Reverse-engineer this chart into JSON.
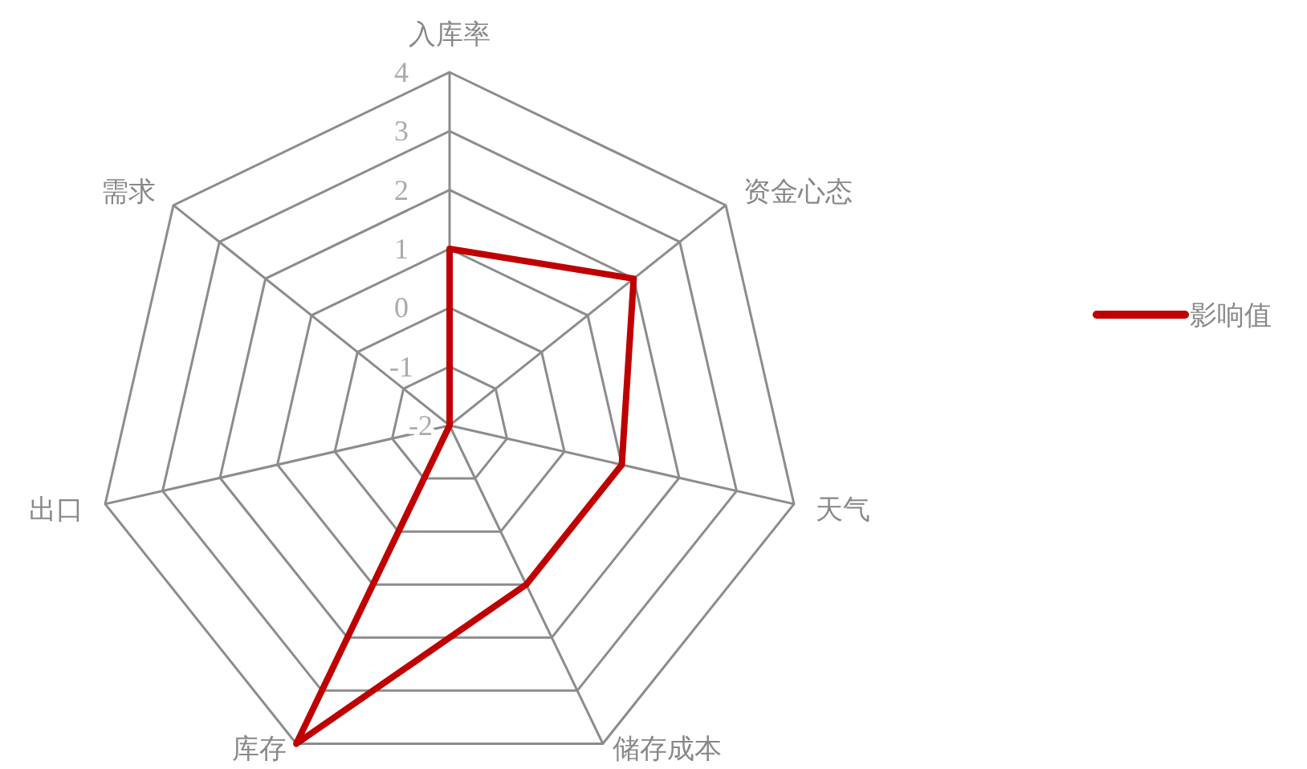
{
  "chart_data": {
    "type": "radar",
    "categories": [
      "入库率",
      "资金心态",
      "天气",
      "储存成本",
      "库存",
      "出口",
      "需求"
    ],
    "series": [
      {
        "name": "影响值",
        "color": "#c00000",
        "values": [
          1,
          2,
          1,
          1,
          4,
          -2,
          -2
        ]
      }
    ],
    "ylim": [
      -2,
      4
    ],
    "yticks": [
      {
        "value": -2,
        "label": "-2"
      },
      {
        "value": -1,
        "label": "-1"
      },
      0,
      1,
      2,
      3,
      4
    ],
    "grid": true,
    "legend": "right",
    "marker": "none"
  }
}
